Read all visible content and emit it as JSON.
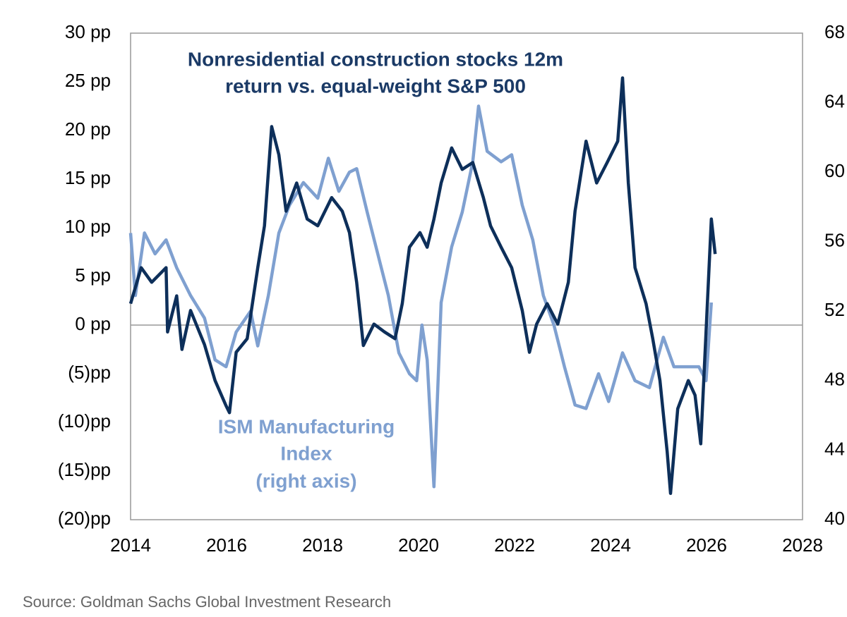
{
  "chart_data": {
    "type": "line",
    "title_lines": [
      "Nonresidential construction stocks 12m",
      "return vs. equal-weight S&P 500"
    ],
    "annotation_lines": [
      "ISM Manufacturing",
      "Index",
      "(right axis)"
    ],
    "source": "Source: Goldman Sachs Global Investment Research",
    "xlim": [
      2014,
      2028
    ],
    "xticks": [
      2014,
      2016,
      2018,
      2020,
      2022,
      2024,
      2026,
      2028
    ],
    "ylim": [
      -20,
      30
    ],
    "yticks": [
      {
        "value": -20,
        "label": "(20)pp"
      },
      {
        "value": -15,
        "label": "(15)pp"
      },
      {
        "value": -10,
        "label": "(10)pp"
      },
      {
        "value": -5,
        "label": "(5)pp"
      },
      {
        "value": 0,
        "label": "0 pp"
      },
      {
        "value": 5,
        "label": "5 pp"
      },
      {
        "value": 10,
        "label": "10 pp"
      },
      {
        "value": 15,
        "label": "15 pp"
      },
      {
        "value": 20,
        "label": "20 pp"
      },
      {
        "value": 25,
        "label": "25 pp"
      },
      {
        "value": 30,
        "label": "30 pp"
      }
    ],
    "y2lim": [
      40,
      68
    ],
    "y2ticks": [
      40,
      44,
      48,
      52,
      56,
      60,
      64,
      68
    ],
    "zero_line": true,
    "series": [
      {
        "color": "#0d2f5a",
        "axis": "y",
        "x": [
          2014.0,
          2014.22,
          2014.44,
          2014.74,
          2014.77,
          2014.96,
          2015.07,
          2015.25,
          2015.54,
          2015.76,
          2015.99,
          2016.06,
          2016.2,
          2016.43,
          2016.65,
          2016.79,
          2016.94,
          2017.09,
          2017.24,
          2017.46,
          2017.68,
          2017.9,
          2018.19,
          2018.41,
          2018.56,
          2018.71,
          2018.85,
          2019.07,
          2019.29,
          2019.51,
          2019.66,
          2019.81,
          2020.03,
          2020.18,
          2020.32,
          2020.47,
          2020.69,
          2020.91,
          2021.13,
          2021.35,
          2021.5,
          2021.72,
          2021.94,
          2022.16,
          2022.31,
          2022.46,
          2022.68,
          2022.9,
          2023.12,
          2023.26,
          2023.49,
          2023.71,
          2023.93,
          2024.15,
          2024.25,
          2024.37,
          2024.51,
          2024.74,
          2024.88,
          2025.03,
          2025.18,
          2025.25,
          2025.4,
          2025.62,
          2025.76,
          2025.88,
          2025.99,
          2026.1,
          2026.18
        ],
        "values": [
          2.2,
          5.9,
          4.4,
          5.9,
          -0.7,
          3,
          -2.5,
          1.5,
          -2,
          -5.7,
          -8.3,
          -9,
          -2.8,
          -1.4,
          5.9,
          10.2,
          20.4,
          17.5,
          11.7,
          14.6,
          10.9,
          10.2,
          13.1,
          11.7,
          9.5,
          4.4,
          -2.1,
          0.1,
          -0.7,
          -1.4,
          2.2,
          8,
          9.5,
          8,
          10.9,
          14.6,
          18.2,
          16,
          16.7,
          13.1,
          10.2,
          8,
          5.9,
          1.5,
          -2.8,
          0.1,
          2.2,
          0.1,
          4.4,
          11.7,
          18.9,
          14.6,
          16.7,
          18.9,
          25.4,
          14.6,
          5.9,
          2.2,
          -1.4,
          -5.7,
          -13,
          -17.3,
          -8.6,
          -5.7,
          -7.2,
          -12.2,
          -0.7,
          10.9,
          7.3
        ]
      },
      {
        "color": "#7fa0d0",
        "axis": "y2",
        "x": [
          2014.0,
          2014.1,
          2014.29,
          2014.51,
          2014.74,
          2014.96,
          2015.25,
          2015.54,
          2015.76,
          2015.99,
          2016.2,
          2016.5,
          2016.65,
          2016.87,
          2017.09,
          2017.31,
          2017.6,
          2017.9,
          2018.12,
          2018.34,
          2018.56,
          2018.71,
          2018.93,
          2019.15,
          2019.37,
          2019.59,
          2019.81,
          2019.96,
          2020.07,
          2020.18,
          2020.32,
          2020.47,
          2020.69,
          2020.91,
          2021.13,
          2021.25,
          2021.43,
          2021.72,
          2021.94,
          2022.16,
          2022.38,
          2022.6,
          2022.82,
          2023.04,
          2023.26,
          2023.49,
          2023.75,
          2023.96,
          2024.25,
          2024.51,
          2024.81,
          2025.1,
          2025.32,
          2025.62,
          2025.84,
          2025.99,
          2026.1
        ],
        "values": [
          56.5,
          52.9,
          56.5,
          55.3,
          56.1,
          54.5,
          52.9,
          51.6,
          49.2,
          48.8,
          50.8,
          52,
          50,
          52.9,
          56.5,
          58.1,
          59.4,
          58.5,
          60.8,
          58.9,
          60,
          60.2,
          57.7,
          55.3,
          52.9,
          49.6,
          48.4,
          48,
          51.2,
          49.2,
          41.9,
          52.5,
          55.7,
          57.7,
          60.6,
          63.8,
          61.2,
          60.6,
          61,
          58.1,
          56.1,
          52.9,
          51.2,
          48.8,
          46.6,
          46.4,
          48.4,
          46.8,
          49.6,
          48,
          47.6,
          50.5,
          48.8,
          48.8,
          48.8,
          48,
          52.5
        ]
      }
    ]
  }
}
